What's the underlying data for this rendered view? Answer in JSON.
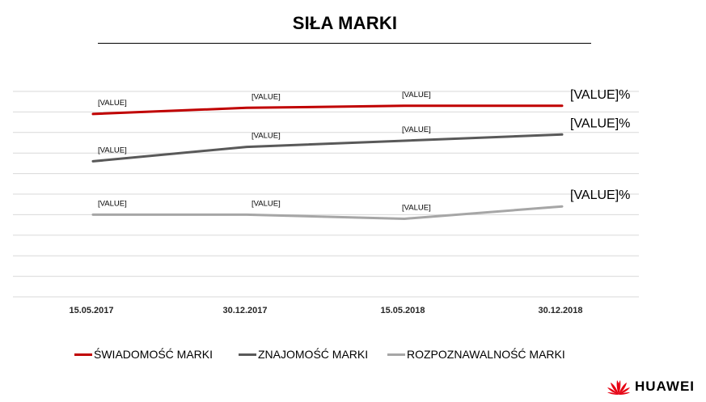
{
  "colors": {
    "swiadomosc": "#c00000",
    "znajomosc": "#595959",
    "rozpoznawalnosc": "#a6a6a6",
    "grid": "#d9d9d9",
    "logo": "#e60012"
  },
  "chart_data": {
    "type": "line",
    "title": "SIŁA MARKI",
    "categories": [
      "15.05.2017",
      "30.12.2017",
      "15.05.2018",
      "30.12.2018"
    ],
    "ylim": [
      0,
      10
    ],
    "grid": true,
    "legend_position": "bottom",
    "series": [
      {
        "name": "ŚWIADOMOŚĆ MARKI",
        "color_key": "swiadomosc",
        "values": [
          8.9,
          9.2,
          9.3,
          9.3
        ],
        "data_labels": [
          "[VALUE]",
          "[VALUE]",
          "[VALUE]",
          "[VALUE]%"
        ]
      },
      {
        "name": "ZNAJOMOŚĆ MARKI",
        "color_key": "znajomosc",
        "values": [
          6.6,
          7.3,
          7.6,
          7.9
        ],
        "data_labels": [
          "[VALUE]",
          "[VALUE]",
          "[VALUE]",
          "[VALUE]%"
        ]
      },
      {
        "name": "ROZPOZNAWALNOŚĆ MARKI",
        "color_key": "rozpoznawalnosc",
        "values": [
          4.0,
          4.0,
          3.8,
          4.4
        ],
        "data_labels": [
          "[VALUE]",
          "[VALUE]",
          "[VALUE]",
          "[VALUE]%"
        ]
      }
    ]
  },
  "logo": {
    "text": "HUAWEI",
    "icon": "huawei-petal-icon"
  }
}
